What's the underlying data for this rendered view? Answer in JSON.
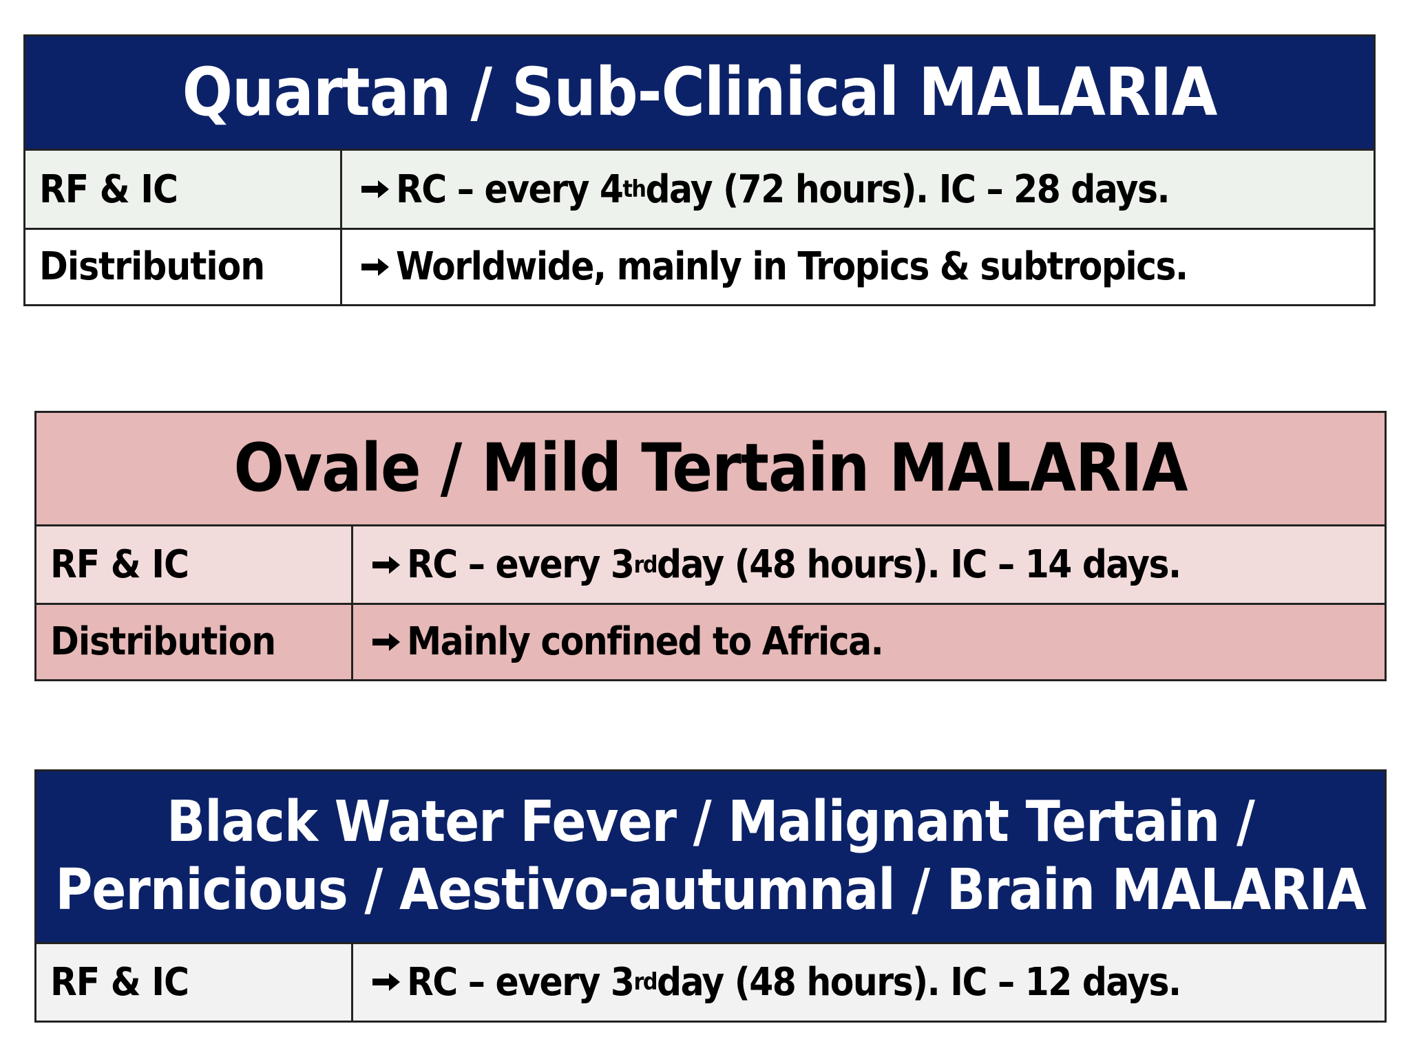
{
  "tables": [
    {
      "title": "Quartan / Sub-Clinical MALARIA",
      "rows": [
        {
          "label": "RF & IC",
          "parts": [
            "RC – every 4",
            "th",
            " day (72 hours). IC – 28 days."
          ]
        },
        {
          "label": "Distribution",
          "parts": [
            "Worldwide, mainly in Tropics & subtropics."
          ]
        }
      ]
    },
    {
      "title": "Ovale / Mild Tertain MALARIA",
      "rows": [
        {
          "label": "RF & IC",
          "parts": [
            "RC – every 3",
            "rd",
            " day (48 hours). IC – 14 days."
          ]
        },
        {
          "label": "Distribution",
          "parts": [
            "Mainly confined to Africa."
          ]
        }
      ]
    },
    {
      "title": "Black Water Fever / Malignant Tertain / Pernicious / Aestivo-autumnal / Brain MALARIA",
      "rows": [
        {
          "label": "RF & IC",
          "parts": [
            "RC – every 3",
            "rd",
            " day (48 hours). IC – 12 days."
          ]
        }
      ]
    }
  ]
}
